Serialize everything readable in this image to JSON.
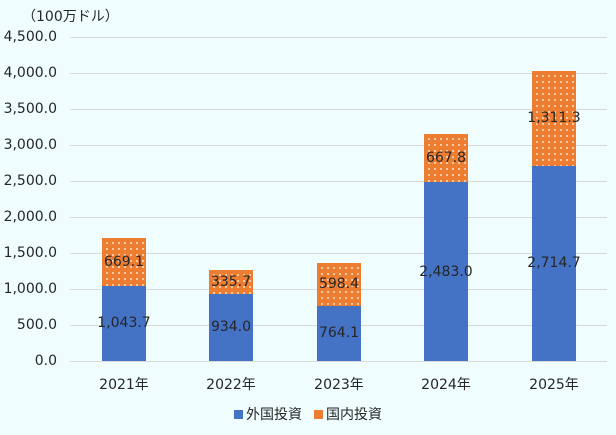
{
  "chart_data": {
    "type": "bar",
    "stacked": true,
    "title": "",
    "ylabel": "（100万ドル）",
    "xlabel": "",
    "ylim": [
      0,
      4500
    ],
    "yticks": [
      "0.0",
      "500.0",
      "1,000.0",
      "1,500.0",
      "2,000.0",
      "2,500.0",
      "3,000.0",
      "3,500.0",
      "4,000.0",
      "4,500.0"
    ],
    "categories": [
      "2021年",
      "2022年",
      "2023年",
      "2024年",
      "2025年"
    ],
    "series": [
      {
        "name": "外国投資",
        "color": "#4472c4",
        "values": [
          1043.7,
          934.0,
          764.1,
          2483.0,
          2714.7
        ],
        "labels": [
          "1,043.7",
          "934.0",
          "764.1",
          "2,483.0",
          "2,714.7"
        ]
      },
      {
        "name": "国内投資",
        "color": "#ed7d31",
        "values": [
          669.1,
          335.7,
          598.4,
          667.8,
          1311.3
        ],
        "labels": [
          "669.1",
          "335.7",
          "598.4",
          "667.8",
          "1,311.3"
        ]
      }
    ],
    "grid": true,
    "legend_position": "bottom"
  }
}
